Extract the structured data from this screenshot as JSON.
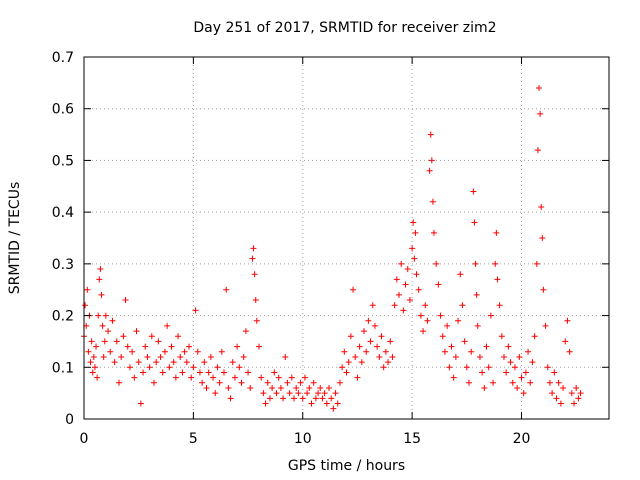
{
  "chart_data": {
    "type": "scatter",
    "title": "Day 251 of 2017, SRMTID for receiver zim2",
    "xlabel": "GPS time / hours",
    "ylabel": "SRMTID / TECUs",
    "xlim": [
      0,
      24
    ],
    "ylim": [
      0,
      0.7
    ],
    "grid": true,
    "marker": "plus",
    "color": "#ff0000",
    "x_ticks": [
      0,
      5,
      10,
      15,
      20
    ],
    "x_tick_labels": [
      "0",
      "5",
      "10",
      "15",
      "20"
    ],
    "y_ticks": [
      0,
      0.1,
      0.2,
      0.3,
      0.4,
      0.5,
      0.6,
      0.7
    ],
    "y_tick_labels": [
      "0",
      "0.1",
      "0.2",
      "0.3",
      "0.4",
      "0.5",
      "0.6",
      "0.7"
    ],
    "series": [
      {
        "name": "SRMTID",
        "points": [
          [
            0.0,
            0.16
          ],
          [
            0.05,
            0.22
          ],
          [
            0.1,
            0.18
          ],
          [
            0.15,
            0.25
          ],
          [
            0.2,
            0.13
          ],
          [
            0.25,
            0.2
          ],
          [
            0.3,
            0.11
          ],
          [
            0.35,
            0.15
          ],
          [
            0.4,
            0.09
          ],
          [
            0.45,
            0.12
          ],
          [
            0.5,
            0.1
          ],
          [
            0.55,
            0.14
          ],
          [
            0.6,
            0.08
          ],
          [
            0.65,
            0.2
          ],
          [
            0.7,
            0.27
          ],
          [
            0.75,
            0.29
          ],
          [
            0.8,
            0.24
          ],
          [
            0.85,
            0.18
          ],
          [
            0.9,
            0.12
          ],
          [
            0.95,
            0.15
          ],
          [
            1.0,
            0.2
          ],
          [
            1.1,
            0.17
          ],
          [
            1.2,
            0.13
          ],
          [
            1.3,
            0.19
          ],
          [
            1.4,
            0.11
          ],
          [
            1.5,
            0.15
          ],
          [
            1.6,
            0.07
          ],
          [
            1.7,
            0.12
          ],
          [
            1.8,
            0.16
          ],
          [
            1.9,
            0.23
          ],
          [
            2.0,
            0.14
          ],
          [
            2.1,
            0.1
          ],
          [
            2.2,
            0.13
          ],
          [
            2.3,
            0.08
          ],
          [
            2.4,
            0.17
          ],
          [
            2.5,
            0.11
          ],
          [
            2.6,
            0.03
          ],
          [
            2.7,
            0.09
          ],
          [
            2.8,
            0.14
          ],
          [
            2.9,
            0.12
          ],
          [
            3.0,
            0.1
          ],
          [
            3.1,
            0.16
          ],
          [
            3.2,
            0.07
          ],
          [
            3.3,
            0.11
          ],
          [
            3.4,
            0.15
          ],
          [
            3.5,
            0.12
          ],
          [
            3.6,
            0.09
          ],
          [
            3.7,
            0.13
          ],
          [
            3.8,
            0.18
          ],
          [
            3.9,
            0.1
          ],
          [
            4.0,
            0.14
          ],
          [
            4.1,
            0.11
          ],
          [
            4.2,
            0.08
          ],
          [
            4.3,
            0.16
          ],
          [
            4.4,
            0.12
          ],
          [
            4.5,
            0.09
          ],
          [
            4.6,
            0.13
          ],
          [
            4.7,
            0.11
          ],
          [
            4.8,
            0.14
          ],
          [
            4.9,
            0.08
          ],
          [
            5.0,
            0.1
          ],
          [
            5.1,
            0.21
          ],
          [
            5.2,
            0.13
          ],
          [
            5.3,
            0.09
          ],
          [
            5.4,
            0.07
          ],
          [
            5.5,
            0.11
          ],
          [
            5.6,
            0.06
          ],
          [
            5.7,
            0.09
          ],
          [
            5.8,
            0.12
          ],
          [
            5.9,
            0.08
          ],
          [
            6.0,
            0.05
          ],
          [
            6.1,
            0.1
          ],
          [
            6.2,
            0.07
          ],
          [
            6.3,
            0.13
          ],
          [
            6.4,
            0.09
          ],
          [
            6.5,
            0.25
          ],
          [
            6.6,
            0.06
          ],
          [
            6.7,
            0.04
          ],
          [
            6.8,
            0.11
          ],
          [
            6.9,
            0.08
          ],
          [
            7.0,
            0.14
          ],
          [
            7.1,
            0.1
          ],
          [
            7.2,
            0.07
          ],
          [
            7.3,
            0.12
          ],
          [
            7.4,
            0.17
          ],
          [
            7.5,
            0.09
          ],
          [
            7.6,
            0.06
          ],
          [
            7.7,
            0.31
          ],
          [
            7.75,
            0.33
          ],
          [
            7.8,
            0.28
          ],
          [
            7.85,
            0.23
          ],
          [
            7.9,
            0.19
          ],
          [
            8.0,
            0.14
          ],
          [
            8.1,
            0.08
          ],
          [
            8.2,
            0.05
          ],
          [
            8.3,
            0.03
          ],
          [
            8.4,
            0.07
          ],
          [
            8.5,
            0.04
          ],
          [
            8.6,
            0.06
          ],
          [
            8.7,
            0.09
          ],
          [
            8.8,
            0.05
          ],
          [
            8.9,
            0.08
          ],
          [
            9.0,
            0.06
          ],
          [
            9.1,
            0.04
          ],
          [
            9.2,
            0.12
          ],
          [
            9.3,
            0.07
          ],
          [
            9.4,
            0.05
          ],
          [
            9.5,
            0.08
          ],
          [
            9.6,
            0.04
          ],
          [
            9.7,
            0.06
          ],
          [
            9.8,
            0.05
          ],
          [
            9.9,
            0.07
          ],
          [
            10.0,
            0.04
          ],
          [
            10.1,
            0.08
          ],
          [
            10.2,
            0.05
          ],
          [
            10.3,
            0.06
          ],
          [
            10.4,
            0.03
          ],
          [
            10.5,
            0.07
          ],
          [
            10.6,
            0.04
          ],
          [
            10.7,
            0.05
          ],
          [
            10.8,
            0.06
          ],
          [
            10.9,
            0.04
          ],
          [
            11.0,
            0.05
          ],
          [
            11.1,
            0.03
          ],
          [
            11.2,
            0.06
          ],
          [
            11.3,
            0.04
          ],
          [
            11.4,
            0.02
          ],
          [
            11.5,
            0.05
          ],
          [
            11.6,
            0.03
          ],
          [
            11.7,
            0.07
          ],
          [
            11.8,
            0.1
          ],
          [
            11.9,
            0.13
          ],
          [
            12.0,
            0.09
          ],
          [
            12.1,
            0.11
          ],
          [
            12.2,
            0.16
          ],
          [
            12.3,
            0.25
          ],
          [
            12.4,
            0.12
          ],
          [
            12.5,
            0.08
          ],
          [
            12.6,
            0.14
          ],
          [
            12.7,
            0.11
          ],
          [
            12.8,
            0.17
          ],
          [
            12.9,
            0.13
          ],
          [
            13.0,
            0.19
          ],
          [
            13.1,
            0.15
          ],
          [
            13.2,
            0.22
          ],
          [
            13.3,
            0.18
          ],
          [
            13.4,
            0.14
          ],
          [
            13.5,
            0.12
          ],
          [
            13.6,
            0.16
          ],
          [
            13.7,
            0.1
          ],
          [
            13.8,
            0.13
          ],
          [
            13.9,
            0.11
          ],
          [
            14.0,
            0.15
          ],
          [
            14.1,
            0.12
          ],
          [
            14.2,
            0.22
          ],
          [
            14.3,
            0.27
          ],
          [
            14.4,
            0.24
          ],
          [
            14.5,
            0.3
          ],
          [
            14.6,
            0.21
          ],
          [
            14.7,
            0.26
          ],
          [
            14.8,
            0.29
          ],
          [
            14.9,
            0.23
          ],
          [
            15.0,
            0.33
          ],
          [
            15.05,
            0.38
          ],
          [
            15.1,
            0.31
          ],
          [
            15.15,
            0.36
          ],
          [
            15.2,
            0.28
          ],
          [
            15.3,
            0.25
          ],
          [
            15.4,
            0.2
          ],
          [
            15.5,
            0.17
          ],
          [
            15.6,
            0.22
          ],
          [
            15.7,
            0.19
          ],
          [
            15.8,
            0.48
          ],
          [
            15.85,
            0.55
          ],
          [
            15.9,
            0.5
          ],
          [
            15.95,
            0.42
          ],
          [
            16.0,
            0.36
          ],
          [
            16.1,
            0.3
          ],
          [
            16.2,
            0.26
          ],
          [
            16.3,
            0.2
          ],
          [
            16.4,
            0.16
          ],
          [
            16.5,
            0.13
          ],
          [
            16.6,
            0.18
          ],
          [
            16.7,
            0.1
          ],
          [
            16.8,
            0.14
          ],
          [
            16.9,
            0.08
          ],
          [
            17.0,
            0.12
          ],
          [
            17.1,
            0.19
          ],
          [
            17.2,
            0.28
          ],
          [
            17.3,
            0.22
          ],
          [
            17.4,
            0.15
          ],
          [
            17.5,
            0.1
          ],
          [
            17.6,
            0.07
          ],
          [
            17.7,
            0.13
          ],
          [
            17.8,
            0.44
          ],
          [
            17.85,
            0.38
          ],
          [
            17.9,
            0.3
          ],
          [
            17.95,
            0.24
          ],
          [
            18.0,
            0.18
          ],
          [
            18.1,
            0.12
          ],
          [
            18.2,
            0.09
          ],
          [
            18.3,
            0.06
          ],
          [
            18.4,
            0.14
          ],
          [
            18.5,
            0.1
          ],
          [
            18.6,
            0.2
          ],
          [
            18.7,
            0.07
          ],
          [
            18.8,
            0.3
          ],
          [
            18.85,
            0.36
          ],
          [
            18.9,
            0.27
          ],
          [
            19.0,
            0.22
          ],
          [
            19.1,
            0.16
          ],
          [
            19.2,
            0.12
          ],
          [
            19.3,
            0.09
          ],
          [
            19.4,
            0.14
          ],
          [
            19.5,
            0.11
          ],
          [
            19.6,
            0.07
          ],
          [
            19.7,
            0.1
          ],
          [
            19.8,
            0.06
          ],
          [
            19.9,
            0.12
          ],
          [
            20.0,
            0.08
          ],
          [
            20.1,
            0.05
          ],
          [
            20.2,
            0.09
          ],
          [
            20.3,
            0.13
          ],
          [
            20.4,
            0.07
          ],
          [
            20.5,
            0.11
          ],
          [
            20.6,
            0.16
          ],
          [
            20.7,
            0.3
          ],
          [
            20.75,
            0.52
          ],
          [
            20.8,
            0.64
          ],
          [
            20.85,
            0.59
          ],
          [
            20.9,
            0.41
          ],
          [
            20.95,
            0.35
          ],
          [
            21.0,
            0.25
          ],
          [
            21.1,
            0.18
          ],
          [
            21.2,
            0.1
          ],
          [
            21.3,
            0.07
          ],
          [
            21.4,
            0.05
          ],
          [
            21.5,
            0.09
          ],
          [
            21.6,
            0.04
          ],
          [
            21.7,
            0.07
          ],
          [
            21.8,
            0.03
          ],
          [
            21.9,
            0.06
          ],
          [
            22.0,
            0.15
          ],
          [
            22.1,
            0.19
          ],
          [
            22.2,
            0.13
          ],
          [
            22.3,
            0.05
          ],
          [
            22.4,
            0.03
          ],
          [
            22.5,
            0.06
          ],
          [
            22.6,
            0.04
          ],
          [
            22.7,
            0.05
          ]
        ]
      }
    ]
  }
}
